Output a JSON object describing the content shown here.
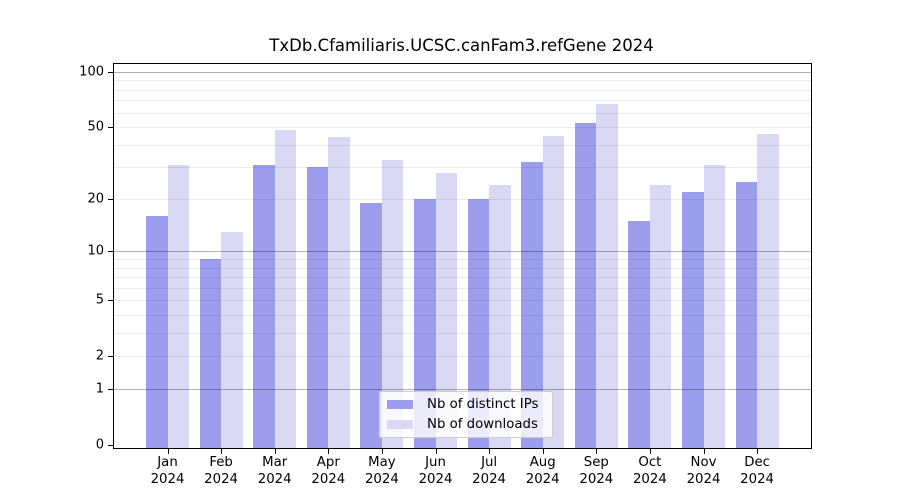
{
  "title": "TxDb.Cfamiliaris.UCSC.canFam3.refGene 2024",
  "chart_data": {
    "type": "bar",
    "scale": "log1p",
    "title": "TxDb.Cfamiliaris.UCSC.canFam3.refGene 2024",
    "categories": [
      "Jan 2024",
      "Feb 2024",
      "Mar 2024",
      "Apr 2024",
      "May 2024",
      "Jun 2024",
      "Jul 2024",
      "Aug 2024",
      "Sep 2024",
      "Oct 2024",
      "Nov 2024",
      "Dec 2024"
    ],
    "series": [
      {
        "name": "Nb of distinct IPs",
        "color": "#9d9dee",
        "values": [
          16,
          9,
          31,
          30,
          19,
          20,
          20,
          32,
          53,
          15,
          22,
          25
        ]
      },
      {
        "name": "Nb of downloads",
        "color": "#d9d9f6",
        "values": [
          31,
          13,
          48,
          44,
          33,
          28,
          24,
          45,
          67,
          24,
          31,
          46
        ]
      }
    ],
    "ylabel": "",
    "xlabel": "",
    "ylim": [
      0,
      110
    ],
    "y_ticks": [
      100,
      50,
      20,
      10,
      5,
      2,
      1,
      0
    ],
    "gridlines": {
      "minor": [
        2,
        3,
        4,
        5,
        6,
        7,
        8,
        9,
        20,
        30,
        40,
        50,
        60,
        70,
        80,
        90
      ],
      "major": [
        1,
        10,
        100
      ]
    },
    "grid": true,
    "legend_position": "inside-bottom-center"
  }
}
